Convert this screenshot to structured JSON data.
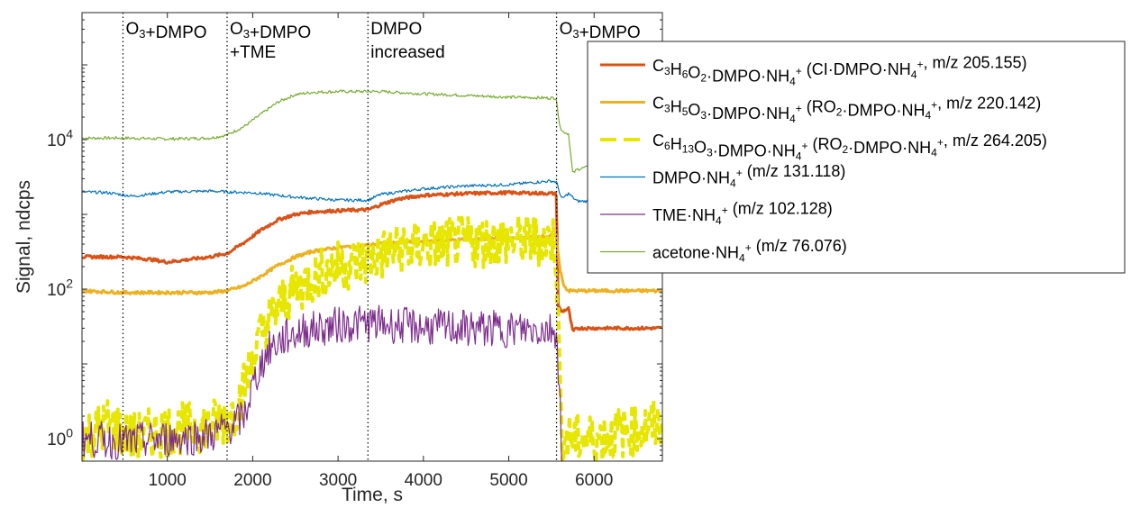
{
  "chart_data": {
    "type": "line",
    "xlabel": "Time, s",
    "ylabel": "Signal, ndcps",
    "xlim": [
      0,
      6800
    ],
    "ylim": [
      0.5,
      500000
    ],
    "yscale": "log",
    "xticks": [
      1000,
      2000,
      3000,
      4000,
      5000,
      6000
    ],
    "xtick_labels": [
      "1000",
      "2000",
      "3000",
      "4000",
      "5000",
      "6000"
    ],
    "yticks": [
      1,
      100,
      10000
    ],
    "ytick_labels": [
      {
        "base": "10",
        "exp": "0"
      },
      {
        "base": "10",
        "exp": "2"
      },
      {
        "base": "10",
        "exp": "4"
      }
    ],
    "grid": false,
    "legend_position": "top-right",
    "phase_lines": [
      480,
      1700,
      3350,
      5560
    ],
    "annotations": [
      {
        "x": 480,
        "line1": [
          [
            "O",
            ""
          ],
          [
            "3",
            "sub"
          ],
          [
            "+DMPO",
            ""
          ]
        ],
        "line2": []
      },
      {
        "x": 1700,
        "line1": [
          [
            "O",
            ""
          ],
          [
            "3",
            "sub"
          ],
          [
            "+DMPO",
            ""
          ]
        ],
        "line2": [
          [
            "+TME",
            ""
          ]
        ]
      },
      {
        "x": 3350,
        "line1": [
          [
            "DMPO",
            ""
          ]
        ],
        "line2": [
          [
            "increased",
            ""
          ]
        ]
      },
      {
        "x": 5560,
        "line1": [
          [
            "O",
            ""
          ],
          [
            "3",
            "sub"
          ],
          [
            "+DMPO",
            ""
          ]
        ],
        "line2": []
      }
    ],
    "series": [
      {
        "key": "acetone",
        "color": "#77ac30",
        "width": 1.2,
        "dash": "",
        "noise": 0.02,
        "legend": [
          [
            "acetone·NH",
            ""
          ],
          [
            "4",
            "sub"
          ],
          [
            "+",
            "sup"
          ],
          [
            " (m/z 76.076)",
            ""
          ]
        ],
        "x": [
          0,
          480,
          1000,
          1500,
          1700,
          1900,
          2100,
          2300,
          2500,
          2700,
          3000,
          3500,
          4000,
          4500,
          5000,
          5500,
          5560,
          5580,
          5620,
          5700,
          5750,
          5800,
          6000,
          6800
        ],
        "y": [
          10500,
          10500,
          10200,
          10500,
          11500,
          15000,
          22000,
          32000,
          40000,
          43000,
          44000,
          44000,
          41000,
          39000,
          37000,
          36000,
          36000,
          20000,
          13000,
          12000,
          3500,
          4000,
          4500,
          4500
        ]
      },
      {
        "key": "dmpo",
        "color": "#0072bd",
        "width": 1.2,
        "dash": "",
        "noise": 0.02,
        "legend": [
          [
            "DMPO·NH",
            ""
          ],
          [
            "4",
            "sub"
          ],
          [
            "+",
            "sup"
          ],
          [
            " (m/z 131.118)",
            ""
          ]
        ],
        "x": [
          0,
          300,
          600,
          1000,
          1500,
          1700,
          2000,
          2500,
          3000,
          3350,
          3500,
          4000,
          4500,
          5000,
          5500,
          5560,
          5620,
          5700,
          5800,
          6000,
          6800
        ],
        "y": [
          2000,
          1950,
          1750,
          2000,
          2050,
          2000,
          1950,
          1700,
          1550,
          1550,
          1850,
          2200,
          2400,
          2500,
          2800,
          2700,
          1600,
          1900,
          1500,
          1500,
          1500
        ]
      },
      {
        "key": "ci",
        "color": "#d95319",
        "width": 3,
        "dash": "",
        "noise": 0.02,
        "legend": [
          [
            "C",
            ""
          ],
          [
            "3",
            "sub"
          ],
          [
            "H",
            ""
          ],
          [
            "6",
            "sub"
          ],
          [
            "O",
            ""
          ],
          [
            "2",
            "sub"
          ],
          [
            "·DMPO·NH",
            ""
          ],
          [
            "4",
            "sub"
          ],
          [
            "+",
            "sup"
          ],
          [
            " (CI·DMPO·NH",
            ""
          ],
          [
            "4",
            "sub"
          ],
          [
            "+",
            "sup"
          ],
          [
            ", m/z 205.155)",
            ""
          ]
        ],
        "x": [
          0,
          480,
          800,
          1000,
          1500,
          1700,
          1900,
          2100,
          2300,
          2500,
          2700,
          3000,
          3300,
          3350,
          3500,
          3700,
          4000,
          4500,
          5000,
          5540,
          5560,
          5580,
          5620,
          5700,
          5750,
          5800,
          6000,
          6800
        ],
        "y": [
          270,
          270,
          250,
          230,
          270,
          300,
          420,
          620,
          850,
          1000,
          1080,
          1120,
          1150,
          1150,
          1350,
          1600,
          1800,
          1900,
          1950,
          1900,
          1800,
          60,
          50,
          55,
          27,
          30,
          30,
          30
        ]
      },
      {
        "key": "ro2_a",
        "color": "#edb120",
        "width": 3,
        "dash": "",
        "noise": 0.02,
        "legend": [
          [
            "C",
            ""
          ],
          [
            "3",
            "sub"
          ],
          [
            "H",
            ""
          ],
          [
            "5",
            "sub"
          ],
          [
            "O",
            ""
          ],
          [
            "3",
            "sub"
          ],
          [
            "·DMPO·NH",
            ""
          ],
          [
            "4",
            "sub"
          ],
          [
            "+",
            "sup"
          ],
          [
            " (RO",
            ""
          ],
          [
            "2",
            "sub"
          ],
          [
            "·DMPO·NH",
            ""
          ],
          [
            "4",
            "sub"
          ],
          [
            "+",
            "sup"
          ],
          [
            ", m/z 220.142)",
            ""
          ]
        ],
        "x": [
          0,
          480,
          1000,
          1500,
          1700,
          1900,
          2100,
          2300,
          2500,
          2700,
          3000,
          3350,
          3700,
          4000,
          4500,
          5000,
          5540,
          5560,
          5600,
          5650,
          5700,
          6000,
          6800
        ],
        "y": [
          95,
          90,
          90,
          90,
          95,
          110,
          150,
          210,
          270,
          320,
          360,
          390,
          420,
          440,
          460,
          480,
          520,
          500,
          180,
          110,
          95,
          95,
          95
        ]
      },
      {
        "key": "ro2_b",
        "color": "#e6e600",
        "width": 4,
        "dash": "10 5",
        "noise": 0.35,
        "legend": [
          [
            "C",
            ""
          ],
          [
            "6",
            "sub"
          ],
          [
            "H",
            ""
          ],
          [
            "13",
            "sub"
          ],
          [
            "O",
            ""
          ],
          [
            "3",
            "sub"
          ],
          [
            "·DMPO·NH",
            ""
          ],
          [
            "4",
            "sub"
          ],
          [
            "+",
            "sup"
          ],
          [
            " (RO",
            ""
          ],
          [
            "2",
            "sub"
          ],
          [
            "·DMPO·NH",
            ""
          ],
          [
            "4",
            "sub"
          ],
          [
            "+",
            "sup"
          ],
          [
            ", m/z 264.205)",
            ""
          ]
        ],
        "x": [
          0,
          300,
          600,
          1000,
          1500,
          1700,
          1800,
          1900,
          2000,
          2100,
          2200,
          2400,
          2600,
          2800,
          3000,
          3350,
          3600,
          4000,
          4500,
          5000,
          5540,
          5560,
          5620,
          5700,
          6000,
          6800
        ],
        "y": [
          1,
          1.6,
          1,
          1.3,
          1.5,
          1.8,
          2.5,
          5,
          12,
          25,
          40,
          80,
          120,
          160,
          200,
          240,
          320,
          380,
          420,
          450,
          450,
          200,
          1,
          1,
          1,
          1.6
        ]
      },
      {
        "key": "tme",
        "color": "#7e2f8e",
        "width": 1.2,
        "dash": "",
        "noise": 0.25,
        "legend": [
          [
            "TME·NH",
            ""
          ],
          [
            "4",
            "sub"
          ],
          [
            "+",
            "sup"
          ],
          [
            " (m/z 102.128)",
            ""
          ]
        ],
        "x": [
          0,
          480,
          1000,
          1500,
          1700,
          1800,
          1900,
          2000,
          2100,
          2200,
          2400,
          2600,
          2800,
          3000,
          3350,
          3700,
          4000,
          4500,
          5000,
          5540,
          5560,
          5600,
          5630
        ],
        "y": [
          1,
          0.9,
          1,
          1.1,
          1.4,
          1.6,
          2,
          5,
          10,
          16,
          23,
          28,
          30,
          33,
          35,
          33,
          31,
          30,
          29,
          29,
          27,
          3,
          0.4
        ]
      }
    ],
    "legend_order": [
      "ci",
      "ro2_a",
      "ro2_b",
      "dmpo",
      "tme",
      "acetone"
    ]
  }
}
